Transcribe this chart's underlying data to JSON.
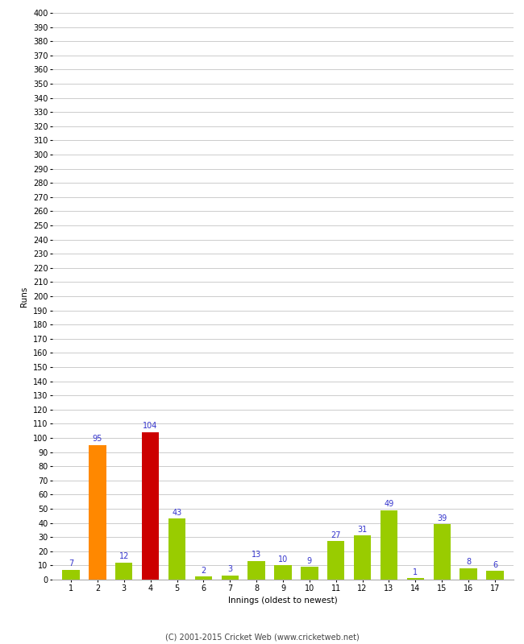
{
  "innings": [
    1,
    2,
    3,
    4,
    5,
    6,
    7,
    8,
    9,
    10,
    11,
    12,
    13,
    14,
    15,
    16,
    17
  ],
  "values": [
    7,
    95,
    12,
    104,
    43,
    2,
    3,
    13,
    10,
    9,
    27,
    31,
    49,
    1,
    39,
    8,
    6
  ],
  "colors": [
    "#99cc00",
    "#ff8800",
    "#99cc00",
    "#cc0000",
    "#99cc00",
    "#99cc00",
    "#99cc00",
    "#99cc00",
    "#99cc00",
    "#99cc00",
    "#99cc00",
    "#99cc00",
    "#99cc00",
    "#99cc00",
    "#99cc00",
    "#99cc00",
    "#99cc00"
  ],
  "xlabel": "Innings (oldest to newest)",
  "ylabel": "Runs",
  "yticks": [
    0,
    10,
    20,
    30,
    40,
    50,
    60,
    70,
    80,
    90,
    100,
    110,
    120,
    130,
    140,
    150,
    160,
    170,
    180,
    190,
    200,
    210,
    220,
    230,
    240,
    250,
    260,
    270,
    280,
    290,
    300,
    310,
    320,
    330,
    340,
    350,
    360,
    370,
    380,
    390,
    400
  ],
  "ylim": [
    0,
    400
  ],
  "label_color": "#3333cc",
  "label_fontsize": 7,
  "tick_fontsize": 7,
  "axis_label_fontsize": 7.5,
  "footer": "(C) 2001-2015 Cricket Web (www.cricketweb.net)",
  "footer_fontsize": 7,
  "background_color": "#ffffff",
  "grid_color": "#cccccc",
  "bar_width": 0.65
}
